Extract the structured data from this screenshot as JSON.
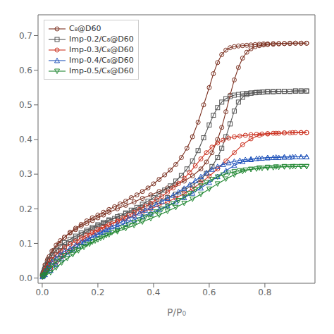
{
  "chart_data": {
    "type": "line",
    "title": "",
    "x_label": "P/P₀",
    "y_label": "",
    "xlim": [
      -0.015,
      0.98
    ],
    "ylim": [
      -0.015,
      0.76
    ],
    "xticks": [
      {
        "value": 0,
        "label": "0.0"
      },
      0.2,
      0.4,
      0.6,
      0.8
    ],
    "yticks": [
      {
        "value": 0,
        "label": "0.0"
      },
      0.1,
      0.2,
      0.3,
      0.4,
      0.5,
      0.6,
      0.7
    ],
    "grid": false,
    "legend": "upper left",
    "series": [
      {
        "name": "C₈@D60",
        "color": "#7B3020",
        "marker": "circle",
        "adsorption": {
          "x": [
            0.001,
            0.003,
            0.005,
            0.008,
            0.012,
            0.018,
            0.025,
            0.035,
            0.05,
            0.065,
            0.08,
            0.1,
            0.12,
            0.14,
            0.16,
            0.18,
            0.2,
            0.22,
            0.24,
            0.27,
            0.3,
            0.33,
            0.36,
            0.39,
            0.42,
            0.45,
            0.48,
            0.51,
            0.54,
            0.57,
            0.59,
            0.61,
            0.63,
            0.645,
            0.66,
            0.675,
            0.69,
            0.705,
            0.72,
            0.735,
            0.75,
            0.765,
            0.78,
            0.795,
            0.81,
            0.83,
            0.85,
            0.87,
            0.89,
            0.91,
            0.93,
            0.95
          ],
          "values": [
            0.01,
            0.015,
            0.02,
            0.028,
            0.038,
            0.05,
            0.062,
            0.078,
            0.095,
            0.108,
            0.118,
            0.13,
            0.14,
            0.15,
            0.158,
            0.166,
            0.174,
            0.182,
            0.19,
            0.2,
            0.21,
            0.22,
            0.23,
            0.24,
            0.25,
            0.26,
            0.27,
            0.28,
            0.295,
            0.315,
            0.335,
            0.362,
            0.4,
            0.435,
            0.48,
            0.528,
            0.572,
            0.608,
            0.635,
            0.652,
            0.662,
            0.668,
            0.671,
            0.673,
            0.674,
            0.675,
            0.676,
            0.677,
            0.677,
            0.678,
            0.678,
            0.678
          ]
        },
        "desorption": {
          "x": [
            0.95,
            0.93,
            0.91,
            0.89,
            0.87,
            0.85,
            0.83,
            0.81,
            0.795,
            0.78,
            0.765,
            0.75,
            0.735,
            0.72,
            0.705,
            0.69,
            0.675,
            0.66,
            0.645,
            0.63,
            0.615,
            0.6,
            0.58,
            0.56,
            0.54,
            0.52,
            0.5,
            0.48,
            0.46,
            0.44,
            0.42,
            0.4,
            0.38,
            0.36,
            0.34,
            0.32,
            0.3,
            0.28,
            0.26,
            0.24,
            0.22,
            0.2,
            0.18,
            0.16,
            0.14,
            0.12,
            0.1,
            0.08,
            0.06,
            0.04,
            0.02,
            0.01
          ],
          "values": [
            0.678,
            0.678,
            0.678,
            0.678,
            0.677,
            0.677,
            0.677,
            0.676,
            0.676,
            0.675,
            0.674,
            0.673,
            0.672,
            0.671,
            0.67,
            0.668,
            0.665,
            0.658,
            0.645,
            0.622,
            0.59,
            0.55,
            0.5,
            0.45,
            0.408,
            0.375,
            0.348,
            0.328,
            0.312,
            0.298,
            0.285,
            0.272,
            0.26,
            0.25,
            0.24,
            0.232,
            0.222,
            0.214,
            0.206,
            0.198,
            0.19,
            0.182,
            0.174,
            0.165,
            0.155,
            0.144,
            0.132,
            0.118,
            0.1,
            0.08,
            0.055,
            0.038
          ]
        }
      },
      {
        "name": "Imp-0.2/C₈@D60",
        "color": "#555555",
        "marker": "square",
        "adsorption": {
          "x": [
            0.001,
            0.003,
            0.005,
            0.008,
            0.012,
            0.018,
            0.025,
            0.035,
            0.05,
            0.065,
            0.08,
            0.1,
            0.12,
            0.14,
            0.16,
            0.18,
            0.2,
            0.22,
            0.24,
            0.27,
            0.3,
            0.33,
            0.36,
            0.39,
            0.42,
            0.45,
            0.48,
            0.51,
            0.54,
            0.57,
            0.59,
            0.61,
            0.63,
            0.645,
            0.66,
            0.675,
            0.69,
            0.705,
            0.72,
            0.735,
            0.75,
            0.77,
            0.79,
            0.81,
            0.83,
            0.85,
            0.87,
            0.89,
            0.91,
            0.93,
            0.95
          ],
          "values": [
            0.008,
            0.012,
            0.016,
            0.022,
            0.03,
            0.04,
            0.052,
            0.066,
            0.08,
            0.092,
            0.102,
            0.112,
            0.121,
            0.13,
            0.138,
            0.146,
            0.154,
            0.161,
            0.168,
            0.177,
            0.186,
            0.195,
            0.204,
            0.213,
            0.222,
            0.232,
            0.242,
            0.254,
            0.268,
            0.285,
            0.302,
            0.322,
            0.348,
            0.375,
            0.408,
            0.445,
            0.482,
            0.508,
            0.522,
            0.53,
            0.534,
            0.536,
            0.537,
            0.538,
            0.538,
            0.539,
            0.539,
            0.539,
            0.54,
            0.54,
            0.54
          ]
        },
        "desorption": {
          "x": [
            0.95,
            0.93,
            0.91,
            0.89,
            0.87,
            0.85,
            0.83,
            0.81,
            0.795,
            0.78,
            0.765,
            0.75,
            0.735,
            0.72,
            0.705,
            0.69,
            0.675,
            0.66,
            0.645,
            0.63,
            0.615,
            0.6,
            0.58,
            0.56,
            0.54,
            0.52,
            0.5,
            0.48,
            0.46,
            0.44,
            0.42,
            0.4,
            0.38,
            0.36,
            0.34,
            0.32,
            0.3,
            0.28,
            0.26,
            0.24,
            0.22,
            0.2,
            0.18,
            0.16,
            0.14,
            0.12,
            0.1,
            0.08,
            0.06,
            0.04,
            0.02,
            0.01
          ],
          "values": [
            0.54,
            0.54,
            0.54,
            0.539,
            0.539,
            0.539,
            0.538,
            0.538,
            0.537,
            0.536,
            0.535,
            0.534,
            0.533,
            0.532,
            0.53,
            0.528,
            0.524,
            0.518,
            0.508,
            0.492,
            0.47,
            0.442,
            0.405,
            0.368,
            0.338,
            0.315,
            0.296,
            0.28,
            0.266,
            0.254,
            0.242,
            0.232,
            0.222,
            0.213,
            0.204,
            0.196,
            0.188,
            0.18,
            0.172,
            0.165,
            0.157,
            0.15,
            0.142,
            0.134,
            0.125,
            0.115,
            0.104,
            0.092,
            0.077,
            0.06,
            0.04,
            0.026
          ]
        }
      },
      {
        "name": "Imp-0.3/C₈@D60",
        "color": "#CC3322",
        "marker": "circle",
        "adsorption": {
          "x": [
            0.001,
            0.003,
            0.005,
            0.008,
            0.012,
            0.018,
            0.025,
            0.035,
            0.05,
            0.065,
            0.08,
            0.1,
            0.12,
            0.14,
            0.16,
            0.18,
            0.2,
            0.22,
            0.24,
            0.27,
            0.3,
            0.33,
            0.36,
            0.39,
            0.42,
            0.45,
            0.48,
            0.51,
            0.54,
            0.57,
            0.6,
            0.63,
            0.66,
            0.69,
            0.72,
            0.75,
            0.78,
            0.81,
            0.84,
            0.87,
            0.9,
            0.93,
            0.95
          ],
          "values": [
            0.006,
            0.01,
            0.013,
            0.018,
            0.025,
            0.033,
            0.042,
            0.054,
            0.067,
            0.078,
            0.088,
            0.098,
            0.107,
            0.116,
            0.124,
            0.132,
            0.14,
            0.147,
            0.154,
            0.163,
            0.172,
            0.181,
            0.19,
            0.2,
            0.21,
            0.22,
            0.231,
            0.244,
            0.258,
            0.275,
            0.294,
            0.315,
            0.338,
            0.362,
            0.385,
            0.402,
            0.412,
            0.416,
            0.418,
            0.419,
            0.42,
            0.42,
            0.42
          ]
        },
        "desorption": {
          "x": [
            0.95,
            0.93,
            0.91,
            0.89,
            0.87,
            0.85,
            0.83,
            0.81,
            0.79,
            0.77,
            0.75,
            0.73,
            0.71,
            0.69,
            0.67,
            0.65,
            0.63,
            0.61,
            0.59,
            0.57,
            0.55,
            0.53,
            0.51,
            0.49,
            0.47,
            0.45,
            0.43,
            0.41,
            0.39,
            0.37,
            0.35,
            0.33,
            0.31,
            0.29,
            0.27,
            0.25,
            0.23,
            0.21,
            0.19,
            0.17,
            0.15,
            0.13,
            0.11,
            0.09,
            0.07,
            0.05,
            0.03,
            0.01
          ],
          "values": [
            0.42,
            0.42,
            0.42,
            0.419,
            0.419,
            0.418,
            0.418,
            0.417,
            0.416,
            0.415,
            0.414,
            0.412,
            0.41,
            0.408,
            0.404,
            0.398,
            0.39,
            0.378,
            0.362,
            0.344,
            0.324,
            0.305,
            0.288,
            0.273,
            0.26,
            0.248,
            0.236,
            0.226,
            0.216,
            0.207,
            0.198,
            0.19,
            0.181,
            0.173,
            0.165,
            0.157,
            0.149,
            0.141,
            0.132,
            0.123,
            0.113,
            0.102,
            0.09,
            0.077,
            0.062,
            0.046,
            0.028,
            0.015
          ]
        }
      },
      {
        "name": "Imp-0.4/C₈@D60",
        "color": "#2255BB",
        "marker": "triangle-up",
        "adsorption": {
          "x": [
            0.001,
            0.003,
            0.005,
            0.008,
            0.012,
            0.018,
            0.025,
            0.035,
            0.05,
            0.065,
            0.08,
            0.1,
            0.12,
            0.14,
            0.16,
            0.18,
            0.2,
            0.22,
            0.24,
            0.27,
            0.3,
            0.33,
            0.36,
            0.39,
            0.42,
            0.45,
            0.48,
            0.51,
            0.54,
            0.57,
            0.6,
            0.63,
            0.66,
            0.69,
            0.72,
            0.75,
            0.78,
            0.81,
            0.84,
            0.87,
            0.9,
            0.93,
            0.95
          ],
          "values": [
            0.004,
            0.007,
            0.01,
            0.015,
            0.021,
            0.028,
            0.036,
            0.046,
            0.058,
            0.068,
            0.077,
            0.086,
            0.095,
            0.103,
            0.111,
            0.118,
            0.126,
            0.133,
            0.14,
            0.149,
            0.159,
            0.168,
            0.178,
            0.188,
            0.198,
            0.209,
            0.22,
            0.232,
            0.245,
            0.26,
            0.276,
            0.293,
            0.31,
            0.325,
            0.336,
            0.342,
            0.346,
            0.348,
            0.349,
            0.35,
            0.35,
            0.35,
            0.35
          ]
        },
        "desorption": {
          "x": [
            0.95,
            0.93,
            0.91,
            0.89,
            0.87,
            0.85,
            0.83,
            0.81,
            0.79,
            0.77,
            0.75,
            0.73,
            0.71,
            0.69,
            0.67,
            0.65,
            0.63,
            0.61,
            0.59,
            0.57,
            0.55,
            0.53,
            0.51,
            0.49,
            0.47,
            0.45,
            0.43,
            0.41,
            0.39,
            0.37,
            0.35,
            0.33,
            0.31,
            0.29,
            0.27,
            0.25,
            0.23,
            0.21,
            0.19,
            0.17,
            0.15,
            0.13,
            0.11,
            0.09,
            0.07,
            0.05,
            0.03,
            0.01
          ],
          "values": [
            0.35,
            0.35,
            0.35,
            0.349,
            0.349,
            0.348,
            0.348,
            0.347,
            0.346,
            0.345,
            0.344,
            0.342,
            0.34,
            0.337,
            0.333,
            0.328,
            0.322,
            0.314,
            0.304,
            0.293,
            0.281,
            0.27,
            0.259,
            0.249,
            0.239,
            0.23,
            0.221,
            0.213,
            0.204,
            0.196,
            0.188,
            0.18,
            0.172,
            0.164,
            0.156,
            0.148,
            0.14,
            0.132,
            0.123,
            0.114,
            0.104,
            0.093,
            0.082,
            0.069,
            0.055,
            0.039,
            0.022,
            0.01
          ]
        }
      },
      {
        "name": "Imp-0.5/C₈@D60",
        "color": "#228833",
        "marker": "triangle-down",
        "adsorption": {
          "x": [
            0.001,
            0.003,
            0.005,
            0.008,
            0.012,
            0.018,
            0.025,
            0.035,
            0.05,
            0.065,
            0.08,
            0.1,
            0.12,
            0.14,
            0.16,
            0.18,
            0.2,
            0.22,
            0.24,
            0.27,
            0.3,
            0.33,
            0.36,
            0.39,
            0.42,
            0.45,
            0.48,
            0.51,
            0.54,
            0.57,
            0.6,
            0.63,
            0.66,
            0.69,
            0.72,
            0.75,
            0.78,
            0.81,
            0.84,
            0.87,
            0.9,
            0.93,
            0.95
          ],
          "values": [
            0.003,
            0.005,
            0.007,
            0.01,
            0.015,
            0.021,
            0.028,
            0.037,
            0.048,
            0.057,
            0.065,
            0.074,
            0.082,
            0.09,
            0.097,
            0.104,
            0.111,
            0.118,
            0.125,
            0.134,
            0.143,
            0.152,
            0.162,
            0.172,
            0.182,
            0.193,
            0.204,
            0.216,
            0.228,
            0.242,
            0.257,
            0.272,
            0.286,
            0.298,
            0.308,
            0.314,
            0.318,
            0.32,
            0.321,
            0.322,
            0.322,
            0.322,
            0.322
          ]
        },
        "desorption": {
          "x": [
            0.95,
            0.93,
            0.91,
            0.89,
            0.87,
            0.85,
            0.83,
            0.81,
            0.79,
            0.77,
            0.75,
            0.73,
            0.71,
            0.69,
            0.67,
            0.65,
            0.63,
            0.61,
            0.59,
            0.57,
            0.55,
            0.53,
            0.51,
            0.49,
            0.47,
            0.45,
            0.43,
            0.41,
            0.39,
            0.37,
            0.35,
            0.33,
            0.31,
            0.29,
            0.27,
            0.25,
            0.23,
            0.21,
            0.19,
            0.17,
            0.15,
            0.13,
            0.11,
            0.09,
            0.07,
            0.05,
            0.03,
            0.01
          ],
          "values": [
            0.322,
            0.322,
            0.322,
            0.321,
            0.321,
            0.32,
            0.319,
            0.318,
            0.317,
            0.315,
            0.314,
            0.312,
            0.31,
            0.307,
            0.303,
            0.298,
            0.292,
            0.285,
            0.276,
            0.266,
            0.255,
            0.244,
            0.234,
            0.224,
            0.215,
            0.207,
            0.199,
            0.191,
            0.183,
            0.176,
            0.168,
            0.161,
            0.153,
            0.146,
            0.138,
            0.131,
            0.123,
            0.115,
            0.107,
            0.098,
            0.089,
            0.079,
            0.068,
            0.057,
            0.044,
            0.03,
            0.016,
            0.007
          ]
        }
      }
    ]
  }
}
